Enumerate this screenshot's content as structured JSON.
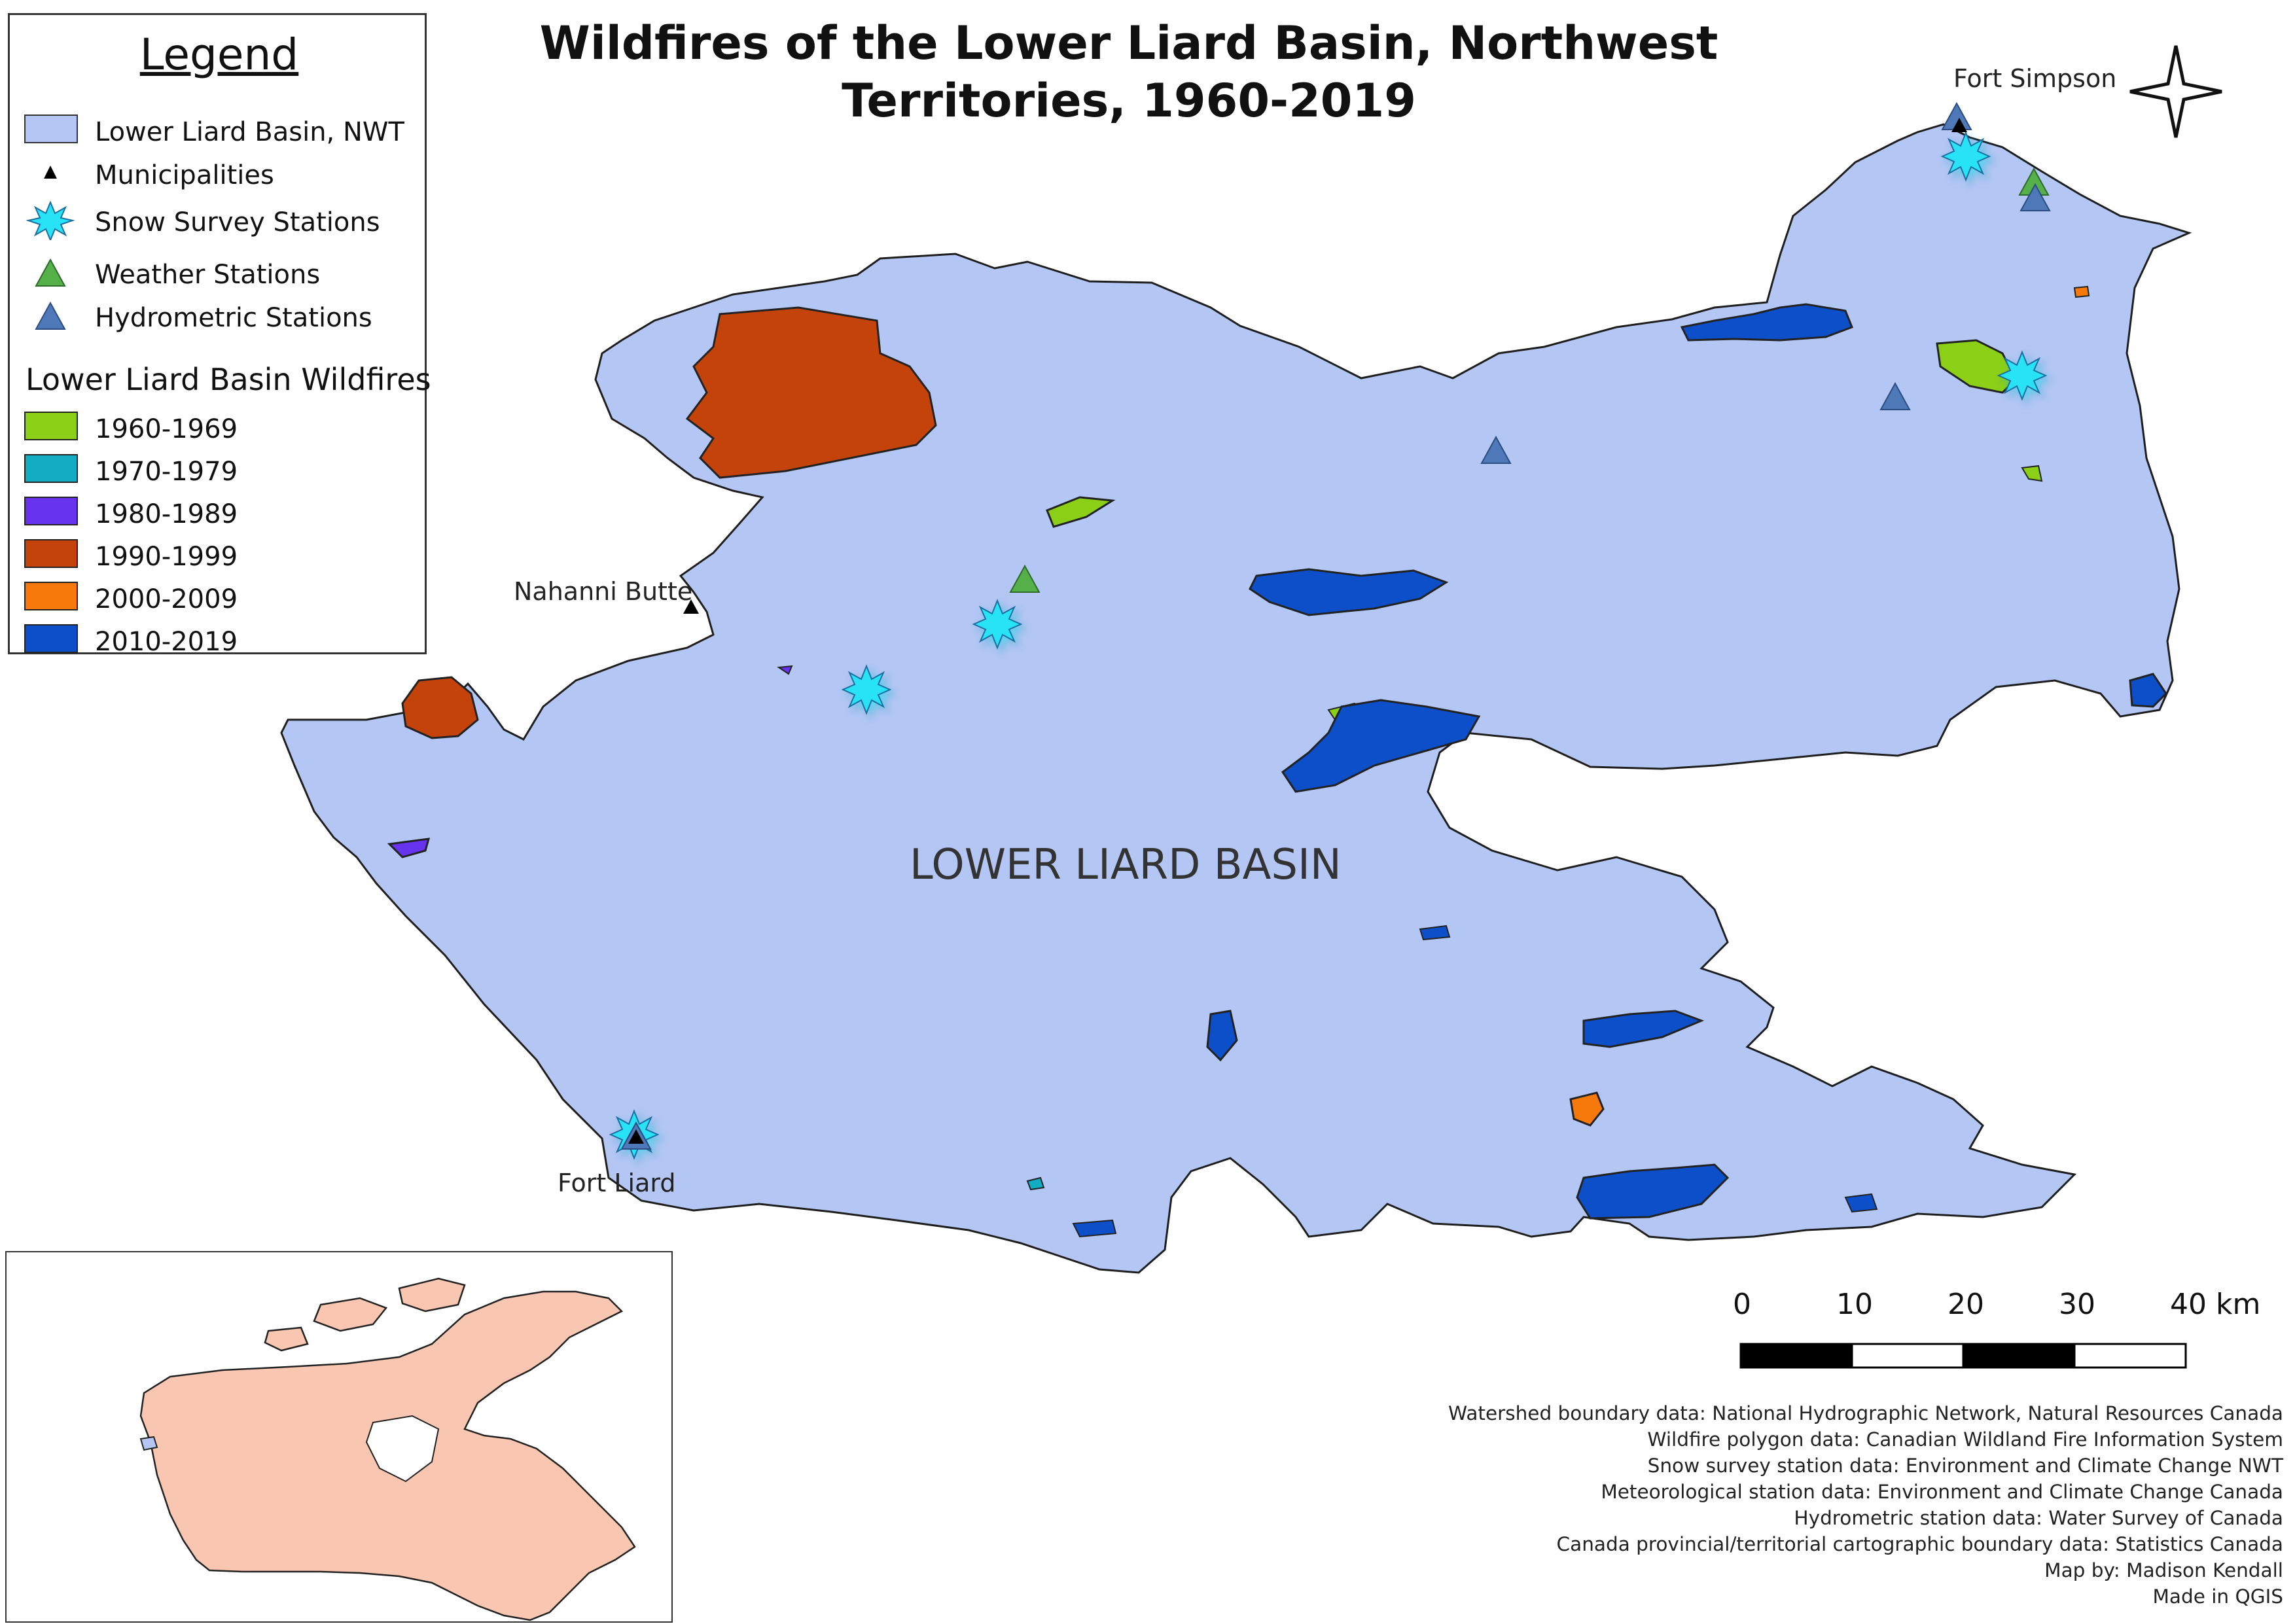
{
  "title": "Wildfires of the Lower Liard Basin, Northwest Territories, 1960-2019",
  "legend": {
    "title": "Legend",
    "items": [
      {
        "label": "Lower Liard Basin, NWT",
        "symbol": "basin-swatch"
      },
      {
        "label": "Municipalities",
        "symbol": "black-triangle"
      },
      {
        "label": "Snow Survey Stations",
        "symbol": "cyan-star"
      },
      {
        "label": "Weather Stations",
        "symbol": "green-triangle"
      },
      {
        "label": "Hydrometric Stations",
        "symbol": "blue-triangle"
      }
    ],
    "wildfire_heading": "Lower Liard Basin Wildfires",
    "decades": [
      {
        "label": "1960-1969",
        "color": "#8ccf17"
      },
      {
        "label": "1970-1979",
        "color": "#13adc3"
      },
      {
        "label": "1980-1989",
        "color": "#6733ee"
      },
      {
        "label": "1990-1999",
        "color": "#c4430b"
      },
      {
        "label": "2000-2009",
        "color": "#f7790b"
      },
      {
        "label": "2010-2019",
        "color": "#0c4fc8"
      }
    ]
  },
  "colors": {
    "basin": "#b3c6f4",
    "basin_outline": "#1e1e1e",
    "snow_station": "#27e3f5",
    "weather_station": "#55b049",
    "hydrometric_station": "#4f78b8",
    "municipality": "#000000",
    "canada_fill": "#f8c6b1"
  },
  "places": {
    "fort_simpson": "Fort Simpson",
    "nahanni_butte": "Nahanni Butte",
    "fort_liard": "Fort Liard"
  },
  "basin_label": "LOWER LIARD BASIN",
  "scale_bar": {
    "labels": [
      "0",
      "10",
      "20",
      "30",
      "40 km"
    ]
  },
  "credits": [
    "Watershed boundary data: National Hydrographic Network, Natural Resources Canada",
    "Wildfire polygon data: Canadian Wildland Fire Information System",
    "Snow survey station data: Environment and Climate Change NWT",
    "Meteorological station data: Environment and Climate Change Canada",
    "Hydrometric station data: Water Survey of Canada",
    "Canada provincial/territorial cartographic boundary data: Statistics Canada",
    "Map by: Madison Kendall",
    "Made in QGIS"
  ],
  "north_arrow": "compass-star-icon"
}
